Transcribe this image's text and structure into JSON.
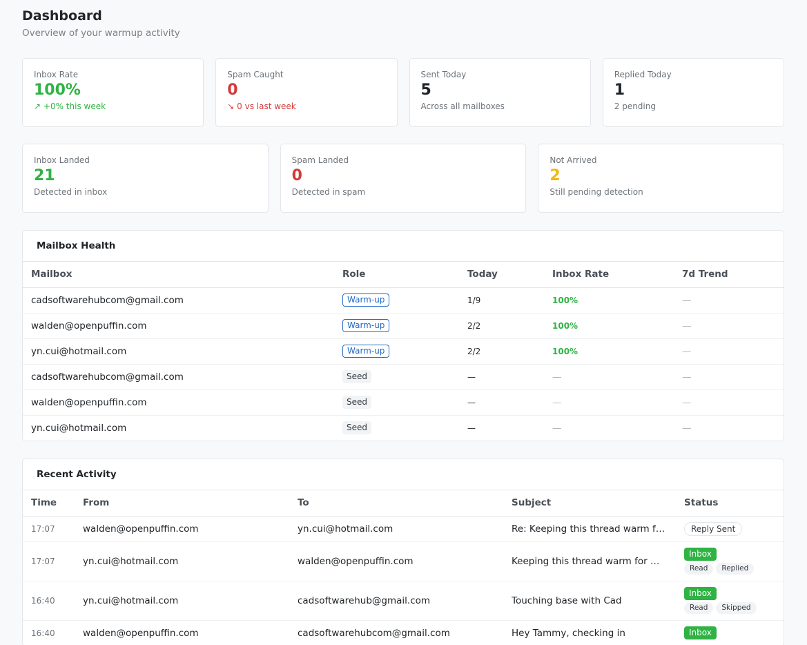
{
  "header": {
    "title": "Dashboard",
    "subtitle": "Overview of your warmup activity"
  },
  "stats_top": [
    {
      "label": "Inbox Rate",
      "value": "100%",
      "sub": "+0% this week",
      "trend": "up",
      "color": "#2fb344"
    },
    {
      "label": "Spam Caught",
      "value": "0",
      "sub": "0 vs last week",
      "trend": "down",
      "color": "#d63939"
    },
    {
      "label": "Sent Today",
      "value": "5",
      "sub": "Across all mailboxes",
      "color": "#1f2328"
    },
    {
      "label": "Replied Today",
      "value": "1",
      "sub": "2 pending",
      "color": "#1f2328"
    }
  ],
  "stats_bottom": [
    {
      "label": "Inbox Landed",
      "value": "21",
      "sub": "Detected in inbox",
      "color": "#2fb344"
    },
    {
      "label": "Spam Landed",
      "value": "0",
      "sub": "Detected in spam",
      "color": "#d63939"
    },
    {
      "label": "Not Arrived",
      "value": "2",
      "sub": "Still pending detection",
      "color": "#f0b90b"
    }
  ],
  "mailbox_health": {
    "title": "Mailbox Health",
    "columns": [
      "Mailbox",
      "Role",
      "Today",
      "Inbox Rate",
      "7d Trend"
    ],
    "rows": [
      {
        "mailbox": "cadsoftwarehubcom@gmail.com",
        "role": "Warm-up",
        "today": "1/9",
        "inbox_rate": "100%",
        "trend": "—"
      },
      {
        "mailbox": "walden@openpuffin.com",
        "role": "Warm-up",
        "today": "2/2",
        "inbox_rate": "100%",
        "trend": "—"
      },
      {
        "mailbox": "yn.cui@hotmail.com",
        "role": "Warm-up",
        "today": "2/2",
        "inbox_rate": "100%",
        "trend": "—"
      },
      {
        "mailbox": "cadsoftwarehubcom@gmail.com",
        "role": "Seed",
        "today": "—",
        "inbox_rate": "—",
        "trend": "—"
      },
      {
        "mailbox": "walden@openpuffin.com",
        "role": "Seed",
        "today": "—",
        "inbox_rate": "—",
        "trend": "—"
      },
      {
        "mailbox": "yn.cui@hotmail.com",
        "role": "Seed",
        "today": "—",
        "inbox_rate": "—",
        "trend": "—"
      }
    ]
  },
  "recent_activity": {
    "title": "Recent Activity",
    "columns": [
      "Time",
      "From",
      "To",
      "Subject",
      "Status"
    ],
    "rows": [
      {
        "time": "17:07",
        "from": "walden@openpuffin.com",
        "to": "yn.cui@hotmail.com",
        "subject": "Re: Keeping this thread warm for Walden",
        "status": "Reply Sent",
        "chips": []
      },
      {
        "time": "17:07",
        "from": "yn.cui@hotmail.com",
        "to": "walden@openpuffin.com",
        "subject": "Keeping this thread warm for Walden",
        "status": "Inbox",
        "chips": [
          "Read",
          "Replied"
        ]
      },
      {
        "time": "16:40",
        "from": "yn.cui@hotmail.com",
        "to": "cadsoftwarehub@gmail.com",
        "subject": "Touching base with Cad",
        "status": "Inbox",
        "chips": [
          "Read",
          "Skipped"
        ]
      },
      {
        "time": "16:40",
        "from": "walden@openpuffin.com",
        "to": "cadsoftwarehubcom@gmail.com",
        "subject": "Hey Tammy, checking in",
        "status": "Inbox",
        "chips": []
      }
    ]
  }
}
